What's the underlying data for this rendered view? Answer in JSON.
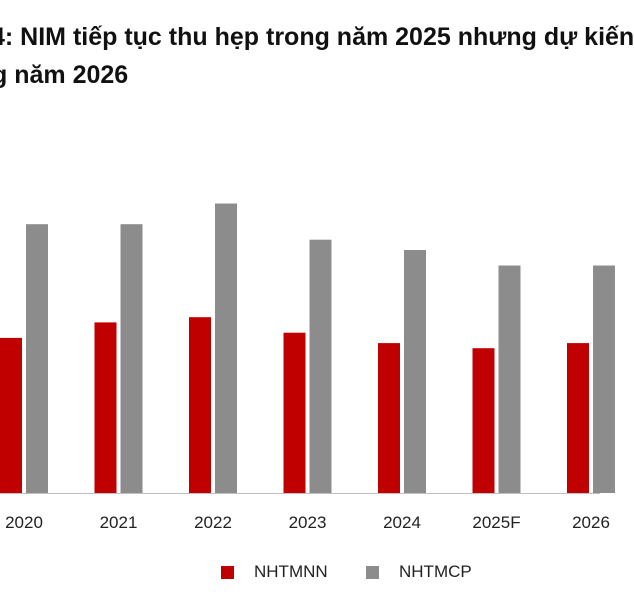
{
  "title_line1": "4: NIM tiếp tục thu hẹp trong năm 2025 nhưng dự kiến",
  "title_line2": "g năm 2026",
  "chart_data": {
    "type": "bar",
    "categories": [
      "2020",
      "2021",
      "2022",
      "2023",
      "2024",
      "2025F",
      "2026"
    ],
    "series": [
      {
        "name": "NHTMNN",
        "values": [
          3.0,
          3.3,
          3.4,
          3.1,
          2.9,
          2.8,
          2.9
        ],
        "color": "#c00000"
      },
      {
        "name": "NHTMCP",
        "values": [
          5.2,
          5.2,
          5.6,
          4.9,
          4.7,
          4.4,
          4.4
        ],
        "color": "#8c8c8c"
      }
    ],
    "ylim": [
      0,
      10
    ],
    "grid": false,
    "legend_position": "bottom",
    "xlabel": "",
    "ylabel": ""
  }
}
